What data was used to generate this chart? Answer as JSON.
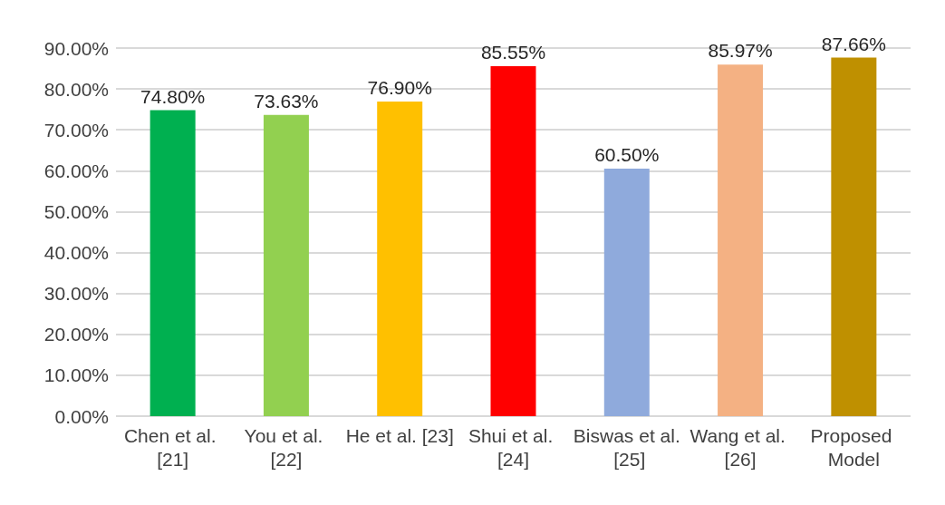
{
  "chart_data": {
    "type": "bar",
    "categories": [
      "Chen et al. [21]",
      "You et al. [22]",
      "He et al. [23]",
      "Shui et al. [24]",
      "Biswas et al. [25]",
      "Wang et al. [26]",
      "Proposed Model"
    ],
    "values": [
      74.8,
      73.63,
      76.9,
      85.55,
      60.5,
      85.97,
      87.66
    ],
    "value_labels": [
      "74.80%",
      "73.63%",
      "76.90%",
      "85.55%",
      "60.50%",
      "85.97%",
      "87.66%"
    ],
    "colors": [
      "#00b050",
      "#92d050",
      "#ffc000",
      "#ff0000",
      "#8faadc",
      "#f4b183",
      "#bf9000"
    ],
    "ylim": [
      0,
      90
    ],
    "yticks": [
      {
        "value": 0,
        "label": "0.00%"
      },
      {
        "value": 10,
        "label": "10.00%"
      },
      {
        "value": 20,
        "label": "20.00%"
      },
      {
        "value": 30,
        "label": "30.00%"
      },
      {
        "value": 40,
        "label": "40.00%"
      },
      {
        "value": 50,
        "label": "50.00%"
      },
      {
        "value": 60,
        "label": "60.00%"
      },
      {
        "value": 70,
        "label": "70.00%"
      },
      {
        "value": 80,
        "label": "80.00%"
      },
      {
        "value": 90,
        "label": "90.00%"
      }
    ],
    "grid": "y"
  }
}
